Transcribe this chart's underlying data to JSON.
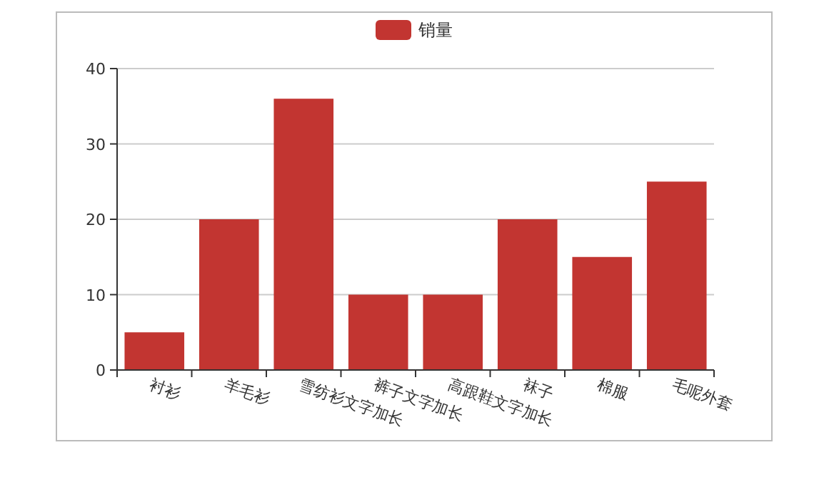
{
  "chart_data": {
    "type": "bar",
    "categories": [
      "衬衫",
      "羊毛衫",
      "雪纺衫文字加长",
      "裤子文字加长",
      "高跟鞋文字加长",
      "袜子",
      "棉服",
      "毛呢外套"
    ],
    "series": [
      {
        "name": "销量",
        "color": "#c23531",
        "values": [
          5,
          20,
          36,
          10,
          10,
          20,
          15,
          25
        ]
      }
    ],
    "ylim": [
      0,
      40
    ],
    "yticks": [
      0,
      10,
      20,
      30,
      40
    ],
    "grid": "y",
    "legend": "top"
  }
}
